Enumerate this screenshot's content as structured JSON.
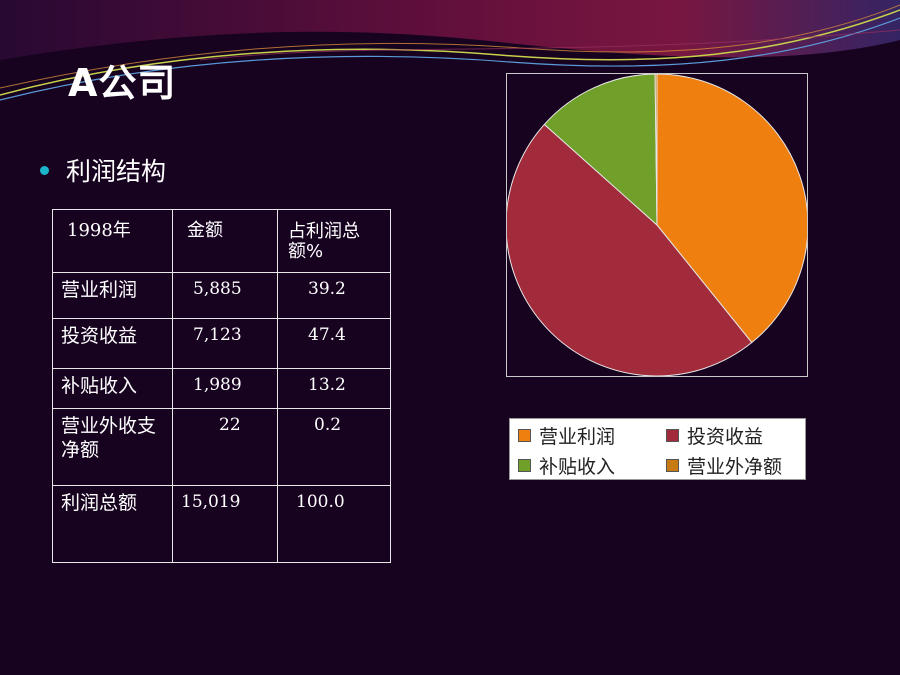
{
  "title": "A公司",
  "bullet": "利润结构",
  "table": {
    "headers": [
      "1998年",
      "金额",
      "占利润总额%"
    ],
    "rows": [
      [
        "营业利润",
        "5,885",
        "39.2"
      ],
      [
        "投资收益",
        "7,123",
        "47.4"
      ],
      [
        "补贴收入",
        "1,989",
        "13.2"
      ],
      [
        "营业外收支净额",
        "22",
        "0.2"
      ],
      [
        "利润总额",
        "15,019",
        "100.0"
      ]
    ]
  },
  "colors": {
    "background": "#170320",
    "bullet": "#1bb6c9",
    "slice_1": "#ef8010",
    "slice_2": "#a12a3b",
    "slice_3": "#70a02a",
    "slice_4": "#c77a12"
  },
  "chart_data": {
    "type": "pie",
    "categories": [
      "营业利润",
      "投资收益",
      "补贴收入",
      "营业外净额"
    ],
    "values": [
      39.2,
      47.4,
      13.2,
      0.2
    ],
    "colors": [
      "#ef8010",
      "#a12a3b",
      "#70a02a",
      "#c77a12"
    ],
    "start": "12 o'clock",
    "direction": "clockwise",
    "legend": "below"
  }
}
